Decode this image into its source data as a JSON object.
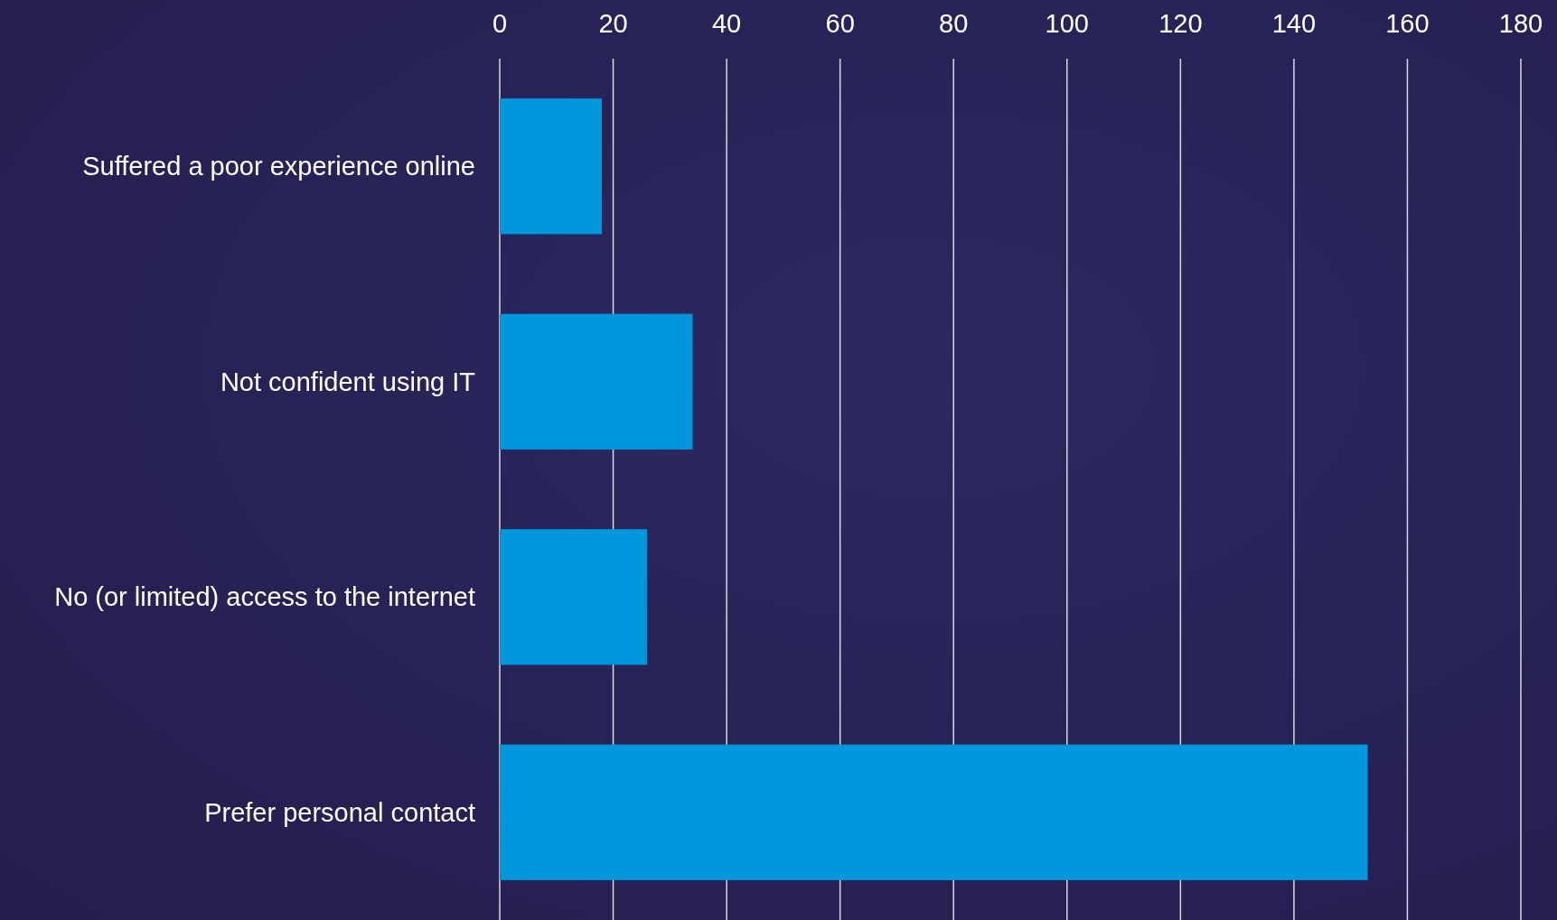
{
  "chart_data": {
    "type": "bar",
    "orientation": "horizontal",
    "categories": [
      "Suffered a poor experience online",
      "Not confident using IT",
      "No (or limited) access to the internet",
      "Prefer personal contact"
    ],
    "values": [
      18,
      34,
      26,
      153
    ],
    "color": "#0096dc",
    "xlim": [
      0,
      180
    ],
    "xticks": [
      0,
      20,
      40,
      60,
      80,
      100,
      120,
      140,
      160,
      180
    ],
    "grid": "x"
  }
}
